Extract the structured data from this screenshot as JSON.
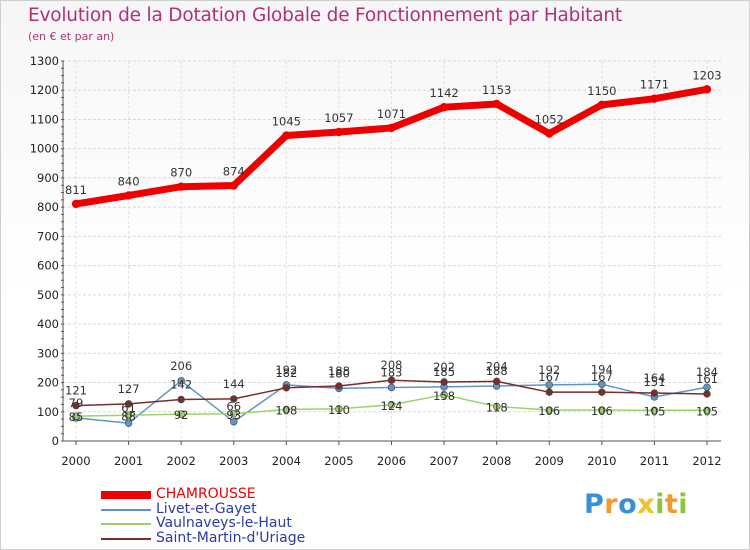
{
  "chart_data": {
    "type": "line",
    "title": "Evolution de la Dotation Globale de Fonctionnement par Habitant",
    "subtitle": "(en € et par an)",
    "x": [
      "2000",
      "2001",
      "2002",
      "2003",
      "2004",
      "2005",
      "2006",
      "2007",
      "2008",
      "2009",
      "2010",
      "2011",
      "2012"
    ],
    "ylim": [
      0,
      1300
    ],
    "yticks": [
      0,
      100,
      200,
      300,
      400,
      500,
      600,
      700,
      800,
      900,
      1000,
      1100,
      1200,
      1300
    ],
    "grid": true,
    "legend_position": "bottom-left",
    "series": [
      {
        "name": "CHAMROUSSE",
        "color": "#ee0000",
        "width": 7,
        "values": [
          811,
          840,
          870,
          874,
          1045,
          1057,
          1071,
          1142,
          1153,
          1052,
          1150,
          1171,
          1203
        ],
        "labels": [
          "811",
          "840",
          "870",
          "874",
          "1045",
          "1057",
          "1071",
          "1142",
          "1153",
          "1052",
          "1150",
          "1171",
          "1203"
        ]
      },
      {
        "name": "Livet-et-Gayet",
        "color": "#5b97c9",
        "width": 1.5,
        "values": [
          79,
          61,
          206,
          66,
          192,
          180,
          183,
          185,
          188,
          192,
          194,
          151,
          184
        ],
        "labels": [
          "79",
          "61",
          "206",
          "66",
          "192",
          "180",
          "183",
          "185",
          "188",
          "192",
          "194",
          "151",
          "184"
        ]
      },
      {
        "name": "Vaulnaveys-le-Haut",
        "color": "#9ad36a",
        "width": 1.5,
        "values": [
          85,
          88,
          92,
          93,
          108,
          110,
          124,
          158,
          118,
          106,
          106,
          105,
          105
        ],
        "labels": [
          "85",
          "88",
          "92",
          "93",
          "108",
          "110",
          "124",
          "158",
          "118",
          "106",
          "106",
          "105",
          "105"
        ]
      },
      {
        "name": "Saint-Martin-d'Uriage",
        "color": "#7a2d2d",
        "width": 1.5,
        "values": [
          121,
          127,
          142,
          144,
          182,
          188,
          208,
          202,
          204,
          167,
          167,
          164,
          161
        ],
        "labels": [
          "121",
          "127",
          "142",
          "144",
          "182",
          "188",
          "208",
          "202",
          "204",
          "167",
          "167",
          "164",
          "161"
        ]
      }
    ]
  },
  "logo": {
    "letters": [
      "P",
      "r",
      "o",
      "x",
      "i",
      "t",
      "i"
    ],
    "colors": [
      "#3b8fd8",
      "#f29a2e",
      "#3b8fd8",
      "#f2c12e",
      "#8cc63f",
      "#f29a2e",
      "#8cc63f"
    ]
  }
}
